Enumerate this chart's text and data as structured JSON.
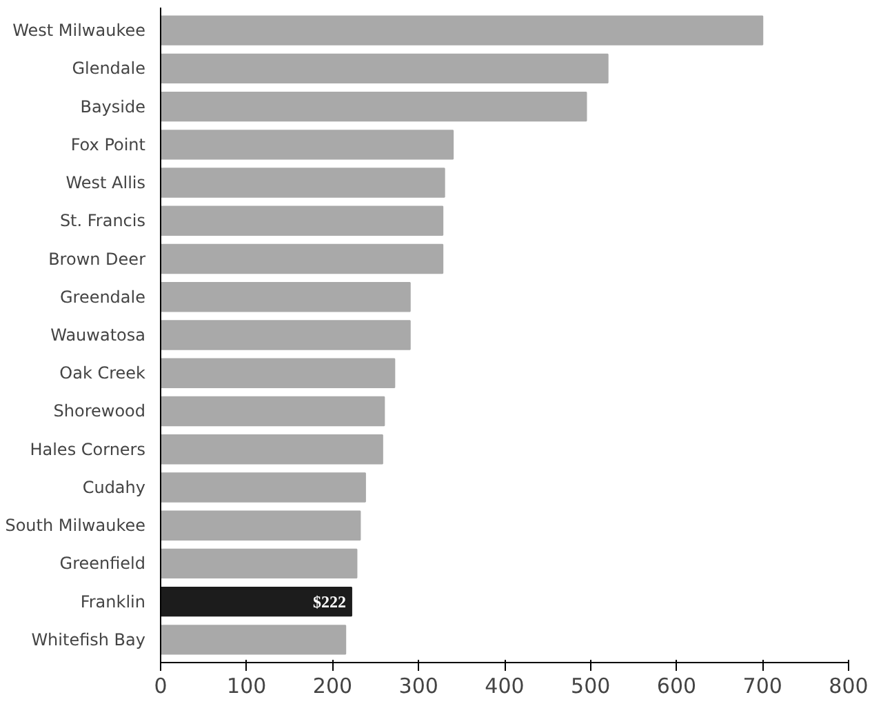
{
  "chart_data": {
    "type": "bar",
    "orientation": "horizontal",
    "categories": [
      "West Milwaukee",
      "Glendale",
      "Bayside",
      "Fox Point",
      "West Allis",
      "St. Francis",
      "Brown Deer",
      "Greendale",
      "Wauwatosa",
      "Oak Creek",
      "Shorewood",
      "Hales Corners",
      "Cudahy",
      "South Milwaukee",
      "Greenfield",
      "Franklin",
      "Whitefish Bay"
    ],
    "values": [
      700,
      520,
      495,
      340,
      330,
      328,
      328,
      290,
      290,
      272,
      260,
      258,
      238,
      232,
      228,
      222,
      215
    ],
    "colors": [
      "#a9a9a9",
      "#a9a9a9",
      "#a9a9a9",
      "#a9a9a9",
      "#a9a9a9",
      "#a9a9a9",
      "#a9a9a9",
      "#a9a9a9",
      "#a9a9a9",
      "#a9a9a9",
      "#a9a9a9",
      "#a9a9a9",
      "#a9a9a9",
      "#a9a9a9",
      "#a9a9a9",
      "#1c1c1c",
      "#a9a9a9"
    ],
    "value_labels": [
      null,
      null,
      null,
      null,
      null,
      null,
      null,
      null,
      null,
      null,
      null,
      null,
      null,
      null,
      null,
      "$222",
      null
    ],
    "xlim": [
      0,
      800
    ],
    "xticks": [
      0,
      100,
      200,
      300,
      400,
      500,
      600,
      700,
      800
    ],
    "grid": false
  }
}
